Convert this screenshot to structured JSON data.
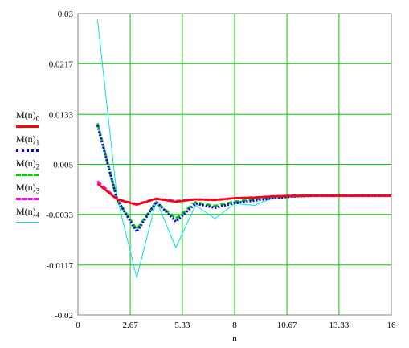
{
  "chart_data": {
    "type": "line",
    "xlabel": "n",
    "ylabel": "",
    "xlim": [
      0,
      16
    ],
    "ylim": [
      -0.02,
      0.03
    ],
    "x_ticks": [
      "0",
      "2.67",
      "5.33",
      "8",
      "10.67",
      "13.33",
      "16"
    ],
    "y_ticks": [
      "0.03",
      "0.0217",
      "0.0133",
      "0.005",
      "-0.0033",
      "-0.0117",
      "-0.02"
    ],
    "grid": true,
    "legend_position": "left",
    "x": [
      1,
      2,
      3,
      4,
      5,
      6,
      7,
      8,
      9,
      10,
      11,
      12,
      13,
      14,
      15,
      16
    ],
    "series": [
      {
        "name": "M(n)",
        "subscript": "0",
        "color": "#ff0000",
        "style": "solid",
        "values": [
          0.0018,
          -0.0008,
          -0.0017,
          -0.0007,
          -0.0012,
          -0.0008,
          -0.0009,
          -0.0006,
          -0.0005,
          -0.0003,
          -0.0002,
          -0.0002,
          -0.0002,
          -0.0002,
          -0.0002,
          -0.0002
        ]
      },
      {
        "name": "M(n)",
        "subscript": "1",
        "color": "#0000ff",
        "style": "dotted",
        "values": [
          0.0115,
          -0.0008,
          -0.0062,
          -0.0012,
          -0.0045,
          -0.0015,
          -0.0022,
          -0.0014,
          -0.001,
          -0.0006,
          -0.0003,
          -0.0002,
          -0.0002,
          -0.0002,
          -0.0002,
          -0.0002
        ]
      },
      {
        "name": "M(n)",
        "subscript": "2",
        "color": "#00cc00",
        "style": "dashed",
        "values": [
          0.0118,
          -0.0009,
          -0.0058,
          -0.0013,
          -0.004,
          -0.0013,
          -0.0019,
          -0.0012,
          -0.0008,
          -0.0005,
          -0.0003,
          -0.0002,
          -0.0002,
          -0.0002,
          -0.0002,
          -0.0002
        ]
      },
      {
        "name": "M(n)",
        "subscript": "3",
        "color": "#ff00ff",
        "style": "dashed",
        "values": [
          0.0022,
          -0.0008,
          -0.0016,
          -0.0007,
          -0.0011,
          -0.0008,
          -0.0009,
          -0.0006,
          -0.0005,
          -0.0003,
          -0.0002,
          -0.0002,
          -0.0002,
          -0.0002,
          -0.0002,
          -0.0002
        ]
      },
      {
        "name": "M(n)",
        "subscript": "4",
        "color": "#00e5e5",
        "style": "solid-thin",
        "values": [
          0.029,
          -0.0005,
          -0.0138,
          -0.001,
          -0.0088,
          -0.0018,
          -0.004,
          -0.0015,
          -0.0018,
          -0.0005,
          -0.0004,
          -0.0003,
          -0.0003,
          -0.0003,
          -0.0003,
          -0.0003
        ]
      }
    ]
  }
}
